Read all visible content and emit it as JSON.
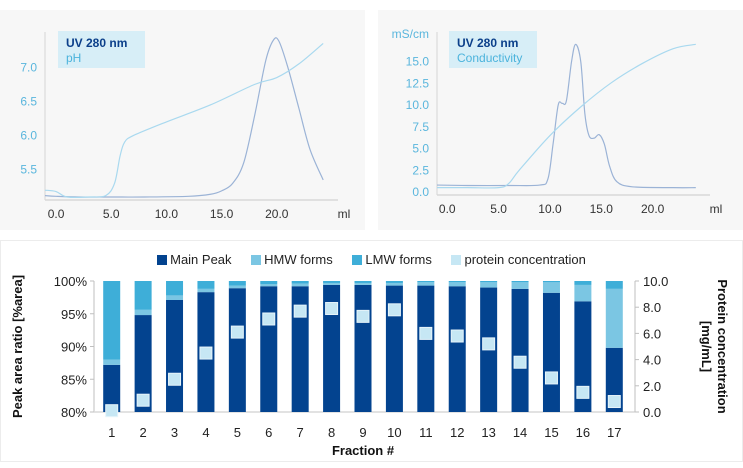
{
  "chart_data": [
    {
      "type": "line",
      "title": "",
      "legend": {
        "title": "UV 280 nm",
        "subtitle": "pH",
        "placement": "top-left"
      },
      "xlabel": "ml",
      "x_ticks": [
        "0.0",
        "5.0",
        "10.0",
        "15.0",
        "20.0"
      ],
      "xlim": [
        -1,
        25
      ],
      "y_ticks": [
        "5.5",
        "6.0",
        "6.5",
        "7.0"
      ],
      "ylim": [
        5.1,
        7.4
      ],
      "series": [
        {
          "name": "UV 280 nm",
          "color": "#9bb3d6",
          "x": [
            -1,
            0,
            2,
            5,
            8,
            12,
            14,
            15,
            16,
            17,
            18,
            19,
            19.7,
            20.2,
            21,
            22,
            23,
            24.2
          ],
          "y": [
            5.12,
            5.11,
            5.1,
            5.1,
            5.1,
            5.11,
            5.14,
            5.19,
            5.3,
            5.6,
            6.3,
            7.1,
            7.4,
            7.38,
            7.0,
            6.4,
            5.8,
            5.35
          ]
        },
        {
          "name": "pH",
          "color": "#a9d9ef",
          "x": [
            -1,
            0,
            1,
            3,
            4.5,
            5.3,
            5.8,
            6.2,
            7,
            10,
            14,
            18,
            20,
            22,
            24.2
          ],
          "y": [
            5.2,
            5.18,
            5.1,
            5.1,
            5.12,
            5.3,
            5.7,
            5.9,
            6.0,
            6.2,
            6.45,
            6.75,
            6.85,
            7.05,
            7.35
          ]
        }
      ]
    },
    {
      "type": "line",
      "title": "",
      "legend": {
        "title": "UV 280 nm",
        "subtitle": "Conductivity",
        "placement": "top-left"
      },
      "xlabel": "ml",
      "ylabel": "mS/cm",
      "x_ticks": [
        "0.0",
        "5.0",
        "10.0",
        "15.0",
        "20.0"
      ],
      "xlim": [
        -1,
        25
      ],
      "y_ticks": [
        "0.0",
        "2.5",
        "5.0",
        "7.5",
        "10.0",
        "12.5",
        "15.0"
      ],
      "ylim": [
        0,
        17.5
      ],
      "series": [
        {
          "name": "UV 280 nm",
          "color": "#9bb3d6",
          "x": [
            -1,
            2,
            6,
            9,
            9.8,
            10.3,
            10.8,
            11.2,
            11.6,
            12.1,
            12.5,
            13,
            13.4,
            13.8,
            14.3,
            14.8,
            15.3,
            15.8,
            16.5,
            18,
            22,
            24.2
          ],
          "y": [
            0.8,
            0.75,
            0.75,
            0.8,
            1.5,
            5.5,
            10.0,
            10.2,
            10.5,
            15.0,
            17.0,
            15.0,
            9.0,
            6.5,
            6.2,
            6.6,
            5.5,
            3.0,
            1.2,
            0.6,
            0.5,
            0.5
          ]
        },
        {
          "name": "Conductivity",
          "color": "#a9d9ef",
          "x": [
            -1,
            2,
            5,
            6,
            7,
            10,
            13,
            16,
            19,
            22,
            24.2
          ],
          "y": [
            0.5,
            0.5,
            0.5,
            1.0,
            2.5,
            6.5,
            9.8,
            12.6,
            14.8,
            16.5,
            17.0
          ]
        }
      ]
    },
    {
      "type": "bar",
      "stacked": true,
      "title": "",
      "xlabel": "Fraction #",
      "ylabel": "Peak area ratio [%area]",
      "y2label": "Protein concentration [mg/mL]",
      "ylim": [
        80,
        100
      ],
      "y2lim": [
        0,
        10
      ],
      "y_ticks": [
        "80%",
        "85%",
        "90%",
        "95%",
        "100%"
      ],
      "y2_ticks": [
        "0.0",
        "2.0",
        "4.0",
        "6.0",
        "8.0",
        "10.0"
      ],
      "grid": false,
      "legend_placement": "top-center",
      "categories": [
        "1",
        "2",
        "3",
        "4",
        "5",
        "6",
        "7",
        "8",
        "9",
        "10",
        "11",
        "12",
        "13",
        "14",
        "15",
        "16",
        "17"
      ],
      "series": [
        {
          "name": "Main Peak",
          "color": "#03438f",
          "values": [
            87.2,
            94.8,
            97.1,
            98.3,
            98.9,
            99.2,
            99.2,
            99.4,
            99.4,
            99.3,
            99.3,
            99.2,
            99.0,
            98.8,
            98.2,
            96.9,
            89.8
          ]
        },
        {
          "name": "HMW forms",
          "color": "#7bc6e3",
          "values": [
            0.8,
            0.8,
            0.7,
            0.5,
            0.4,
            0.3,
            0.4,
            0.3,
            0.3,
            0.4,
            0.5,
            0.6,
            0.8,
            1.0,
            1.6,
            2.5,
            9.0
          ]
        },
        {
          "name": "LMW forms",
          "color": "#3eaed8",
          "values": [
            12.0,
            4.4,
            2.2,
            1.2,
            0.7,
            0.5,
            0.4,
            0.3,
            0.3,
            0.3,
            0.2,
            0.2,
            0.2,
            0.2,
            0.2,
            0.6,
            1.2
          ]
        },
        {
          "name": "protein concentration",
          "color": "#c6e7f4",
          "axis": "right",
          "marker": "square",
          "values": [
            0.1,
            0.9,
            2.5,
            4.5,
            6.1,
            7.1,
            7.7,
            7.9,
            7.3,
            7.8,
            6.0,
            5.8,
            5.2,
            3.8,
            2.6,
            1.5,
            0.8
          ]
        }
      ]
    }
  ]
}
